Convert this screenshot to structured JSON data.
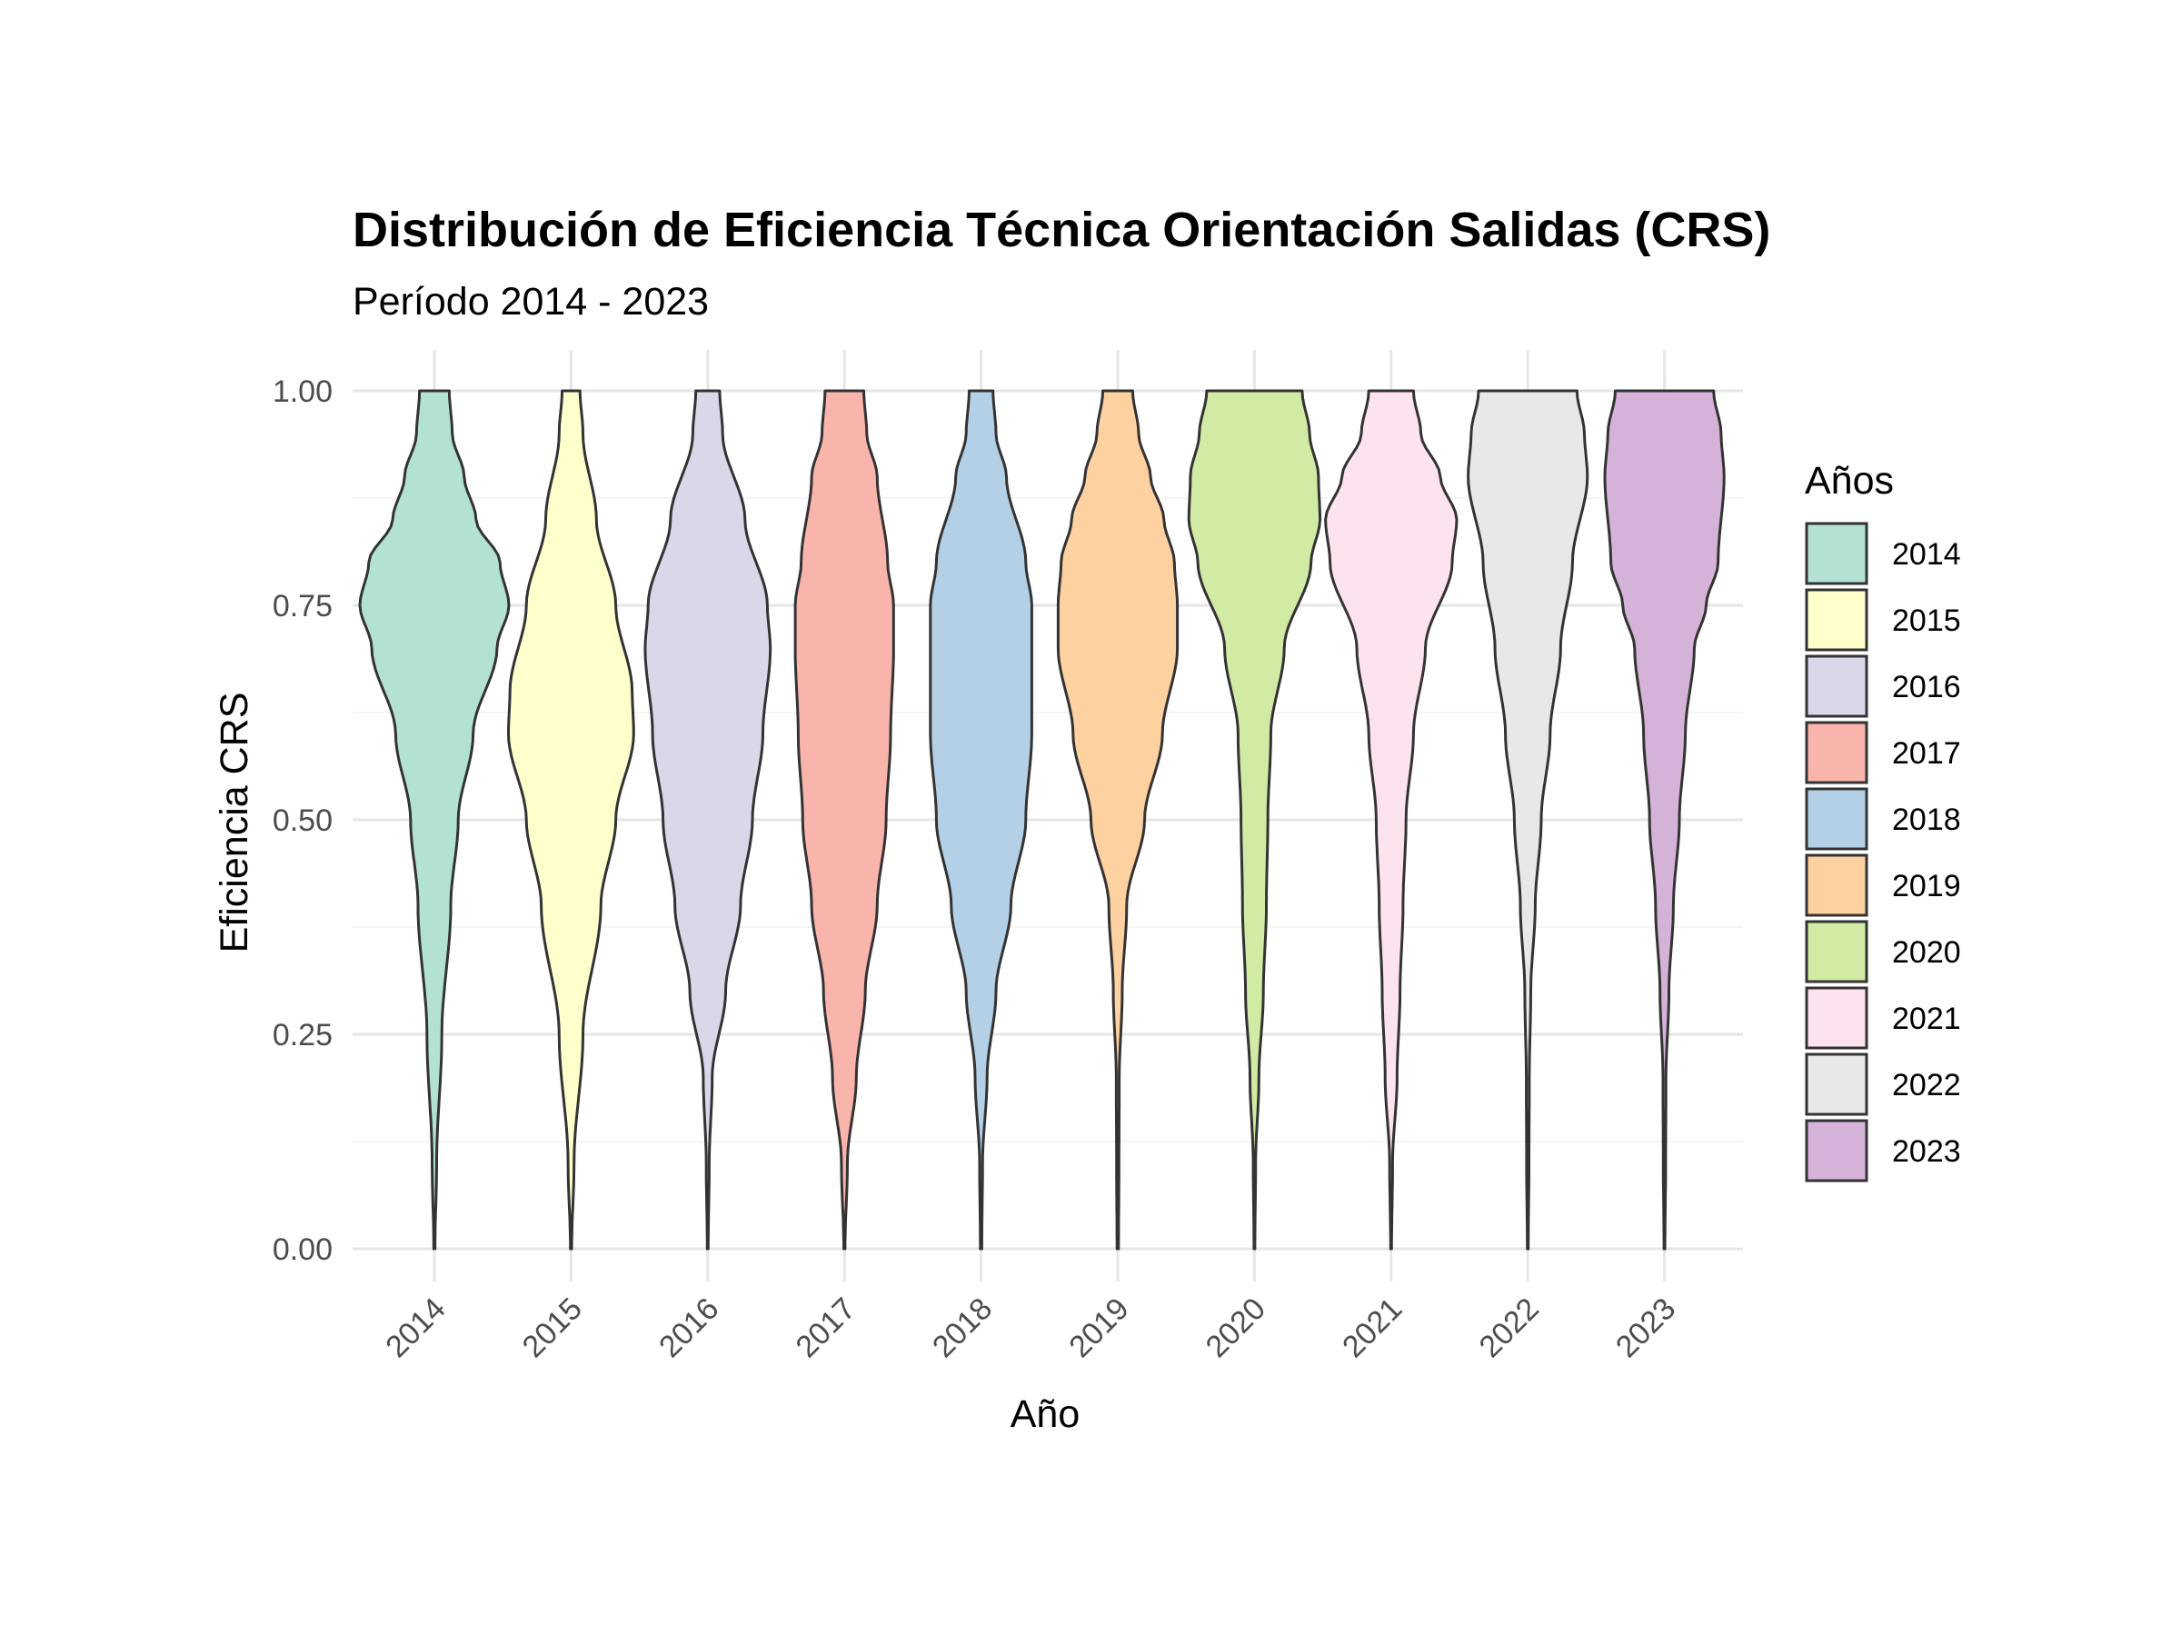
{
  "chart_data": {
    "type": "violin",
    "title": "Distribución de Eficiencia Técnica Orientación Salidas (CRS)",
    "subtitle": "Período 2014 - 2023",
    "xlabel": "Año",
    "ylabel": "Eficiencia CRS",
    "ylim": [
      0,
      1
    ],
    "yticks": [
      "0.00",
      "0.25",
      "0.50",
      "0.75",
      "1.00"
    ],
    "categories": [
      "2014",
      "2015",
      "2016",
      "2017",
      "2018",
      "2019",
      "2020",
      "2021",
      "2022",
      "2023"
    ],
    "legend": {
      "title": "Años",
      "position": "right"
    },
    "grid": true,
    "series": [
      {
        "name": "2014",
        "color": "#B3E2D5",
        "profile": [
          [
            0.0,
            0.004
          ],
          [
            0.1,
            0.015
          ],
          [
            0.25,
            0.05
          ],
          [
            0.4,
            0.11
          ],
          [
            0.5,
            0.16
          ],
          [
            0.6,
            0.26
          ],
          [
            0.7,
            0.42
          ],
          [
            0.75,
            0.5
          ],
          [
            0.8,
            0.44
          ],
          [
            0.85,
            0.28
          ],
          [
            0.9,
            0.2
          ],
          [
            0.95,
            0.12
          ],
          [
            1.0,
            0.1
          ]
        ]
      },
      {
        "name": "2015",
        "color": "#FFFFCC",
        "profile": [
          [
            0.0,
            0.004
          ],
          [
            0.1,
            0.02
          ],
          [
            0.25,
            0.08
          ],
          [
            0.4,
            0.2
          ],
          [
            0.5,
            0.3
          ],
          [
            0.6,
            0.42
          ],
          [
            0.65,
            0.41
          ],
          [
            0.75,
            0.3
          ],
          [
            0.85,
            0.17
          ],
          [
            0.95,
            0.08
          ],
          [
            1.0,
            0.06
          ]
        ]
      },
      {
        "name": "2016",
        "color": "#D9D8E9",
        "profile": [
          [
            0.0,
            0.003
          ],
          [
            0.1,
            0.01
          ],
          [
            0.2,
            0.03
          ],
          [
            0.3,
            0.12
          ],
          [
            0.4,
            0.22
          ],
          [
            0.5,
            0.3
          ],
          [
            0.6,
            0.37
          ],
          [
            0.7,
            0.42
          ],
          [
            0.75,
            0.4
          ],
          [
            0.85,
            0.25
          ],
          [
            0.95,
            0.1
          ],
          [
            1.0,
            0.08
          ]
        ]
      },
      {
        "name": "2017",
        "color": "#F9B4AC",
        "profile": [
          [
            0.0,
            0.004
          ],
          [
            0.1,
            0.02
          ],
          [
            0.2,
            0.08
          ],
          [
            0.3,
            0.14
          ],
          [
            0.4,
            0.22
          ],
          [
            0.5,
            0.28
          ],
          [
            0.6,
            0.31
          ],
          [
            0.7,
            0.33
          ],
          [
            0.75,
            0.33
          ],
          [
            0.8,
            0.29
          ],
          [
            0.9,
            0.22
          ],
          [
            0.95,
            0.15
          ],
          [
            1.0,
            0.13
          ]
        ]
      },
      {
        "name": "2018",
        "color": "#B4D0E6",
        "profile": [
          [
            0.0,
            0.005
          ],
          [
            0.1,
            0.01
          ],
          [
            0.2,
            0.04
          ],
          [
            0.3,
            0.1
          ],
          [
            0.4,
            0.2
          ],
          [
            0.5,
            0.3
          ],
          [
            0.6,
            0.34
          ],
          [
            0.7,
            0.34
          ],
          [
            0.75,
            0.34
          ],
          [
            0.8,
            0.3
          ],
          [
            0.9,
            0.17
          ],
          [
            0.95,
            0.1
          ],
          [
            1.0,
            0.08
          ]
        ]
      },
      {
        "name": "2019",
        "color": "#FDD1A0",
        "profile": [
          [
            0.0,
            0.005
          ],
          [
            0.1,
            0.008
          ],
          [
            0.2,
            0.01
          ],
          [
            0.3,
            0.03
          ],
          [
            0.4,
            0.06
          ],
          [
            0.5,
            0.18
          ],
          [
            0.6,
            0.3
          ],
          [
            0.7,
            0.4
          ],
          [
            0.75,
            0.4
          ],
          [
            0.8,
            0.38
          ],
          [
            0.85,
            0.31
          ],
          [
            0.9,
            0.22
          ],
          [
            0.95,
            0.14
          ],
          [
            1.0,
            0.1
          ]
        ]
      },
      {
        "name": "2020",
        "color": "#D1EBA4",
        "profile": [
          [
            0.0,
            0.003
          ],
          [
            0.1,
            0.008
          ],
          [
            0.2,
            0.03
          ],
          [
            0.3,
            0.06
          ],
          [
            0.4,
            0.08
          ],
          [
            0.5,
            0.09
          ],
          [
            0.6,
            0.11
          ],
          [
            0.7,
            0.2
          ],
          [
            0.8,
            0.38
          ],
          [
            0.85,
            0.44
          ],
          [
            0.9,
            0.43
          ],
          [
            0.95,
            0.37
          ],
          [
            1.0,
            0.32
          ]
        ]
      },
      {
        "name": "2021",
        "color": "#FDE2EF",
        "profile": [
          [
            0.0,
            0.003
          ],
          [
            0.1,
            0.01
          ],
          [
            0.2,
            0.04
          ],
          [
            0.3,
            0.06
          ],
          [
            0.4,
            0.08
          ],
          [
            0.5,
            0.1
          ],
          [
            0.6,
            0.15
          ],
          [
            0.7,
            0.23
          ],
          [
            0.8,
            0.41
          ],
          [
            0.85,
            0.44
          ],
          [
            0.9,
            0.33
          ],
          [
            0.95,
            0.2
          ],
          [
            1.0,
            0.15
          ]
        ]
      },
      {
        "name": "2022",
        "color": "#E8E8E8",
        "profile": [
          [
            0.0,
            0.003
          ],
          [
            0.1,
            0.008
          ],
          [
            0.2,
            0.01
          ],
          [
            0.3,
            0.02
          ],
          [
            0.4,
            0.05
          ],
          [
            0.5,
            0.09
          ],
          [
            0.6,
            0.15
          ],
          [
            0.7,
            0.22
          ],
          [
            0.8,
            0.3
          ],
          [
            0.9,
            0.4
          ],
          [
            0.95,
            0.38
          ],
          [
            1.0,
            0.33
          ]
        ]
      },
      {
        "name": "2023",
        "color": "#D5B3D8",
        "profile": [
          [
            0.0,
            0.003
          ],
          [
            0.1,
            0.008
          ],
          [
            0.2,
            0.01
          ],
          [
            0.3,
            0.03
          ],
          [
            0.4,
            0.06
          ],
          [
            0.5,
            0.1
          ],
          [
            0.6,
            0.14
          ],
          [
            0.7,
            0.2
          ],
          [
            0.75,
            0.28
          ],
          [
            0.8,
            0.36
          ],
          [
            0.9,
            0.4
          ],
          [
            0.95,
            0.38
          ],
          [
            1.0,
            0.33
          ]
        ]
      }
    ]
  }
}
